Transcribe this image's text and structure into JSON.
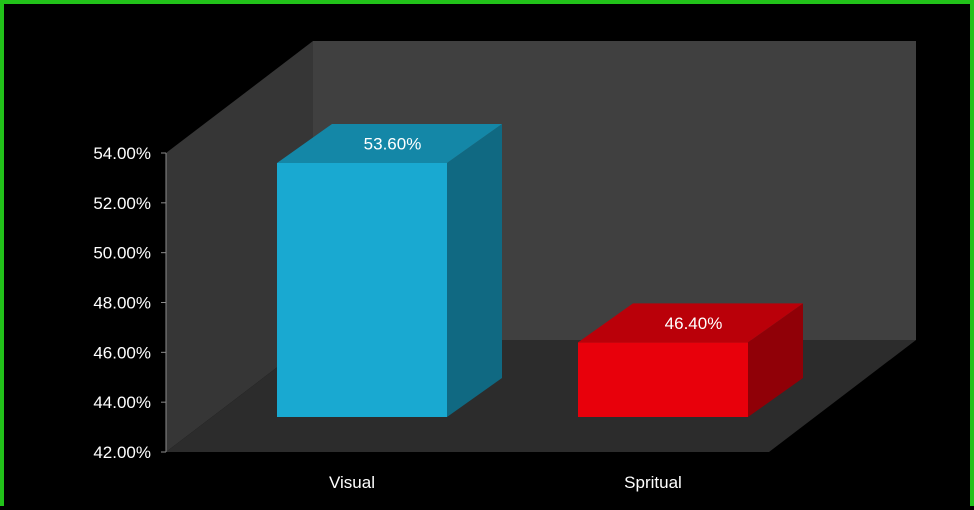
{
  "chart_data": {
    "type": "bar",
    "categories": [
      "Visual",
      "Spritual"
    ],
    "values": [
      53.6,
      46.4
    ],
    "data_labels": [
      "53.60%",
      "46.40%"
    ],
    "ylim": [
      42,
      54
    ],
    "ticks": [
      42,
      44,
      46,
      48,
      50,
      52,
      54
    ],
    "tick_labels": [
      "42.00%",
      "44.00%",
      "46.00%",
      "48.00%",
      "50.00%",
      "52.00%",
      "54.00%"
    ],
    "bar_colors": [
      "#19a9d1",
      "#e8000b"
    ],
    "title": "",
    "xlabel": "",
    "ylabel": "",
    "grid": false,
    "style": "3d-column"
  },
  "colors": {
    "frame_border": "#22c21a",
    "background": "#000000",
    "back_wall": "#404040",
    "side_wall": "#363636",
    "floor": "#2c2c2c",
    "text": "#ffffff"
  }
}
